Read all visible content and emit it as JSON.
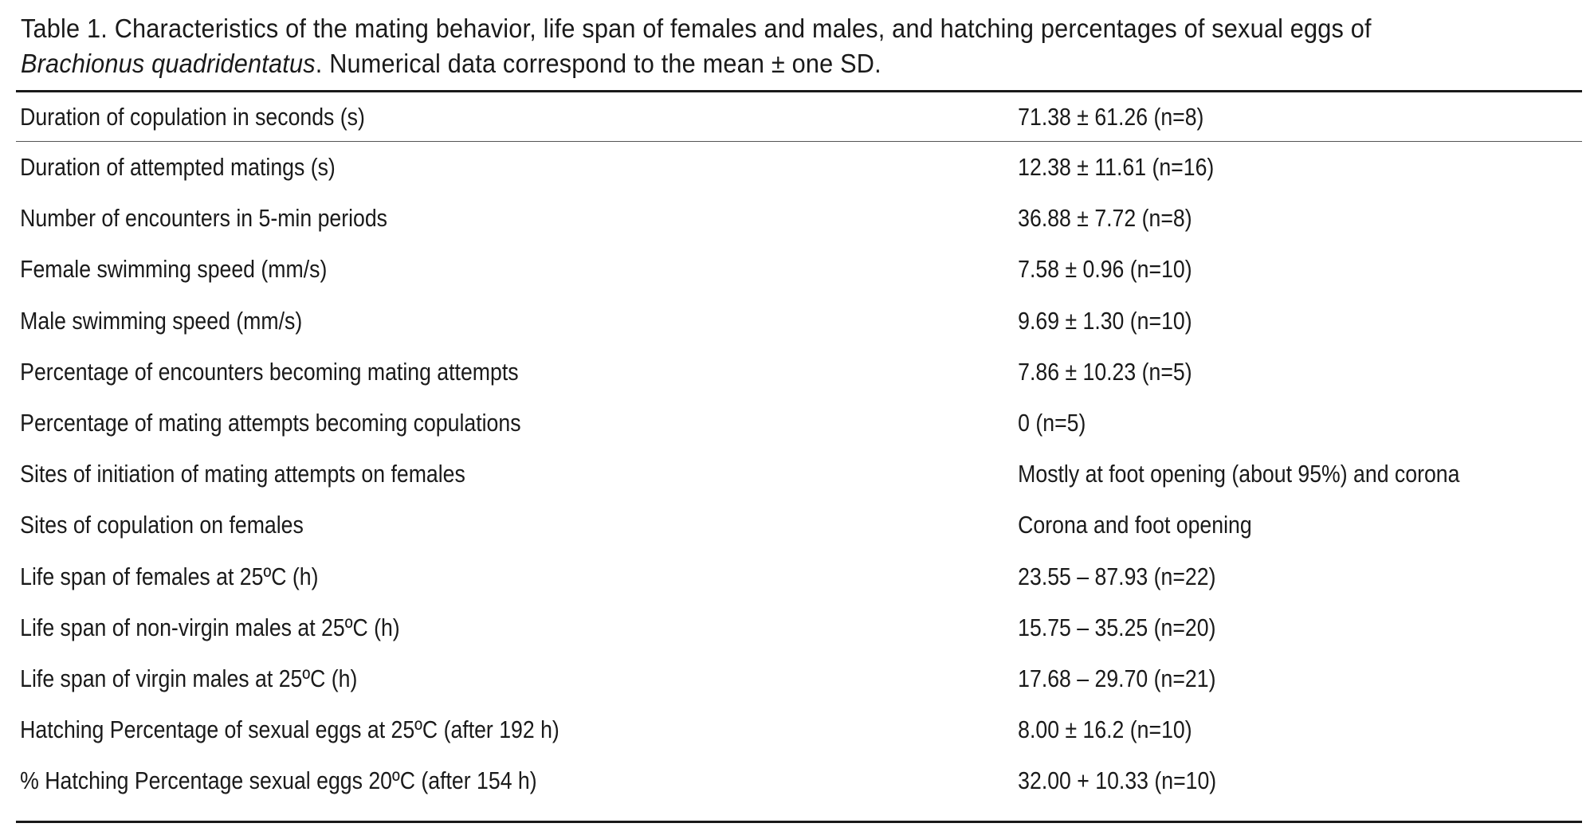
{
  "caption": {
    "prefix": "Table 1. Characteristics of the mating behavior, life span of females and males, and hatching percentages of sexual eggs of ",
    "species": "Brachionus quadridentatus",
    "suffix": ". Numerical data correspond to the mean ± one SD."
  },
  "rows": [
    {
      "label": "Duration of copulation in seconds (s)",
      "value": "71.38 ± 61.26 (n=8)"
    },
    {
      "label": "Duration of attempted matings (s)",
      "value": "12.38 ± 11.61 (n=16)"
    },
    {
      "label": "Number of encounters in 5-min periods",
      "value": "36.88 ± 7.72 (n=8)"
    },
    {
      "label": "Female swimming speed (mm/s)",
      "value": "7.58 ± 0.96 (n=10)"
    },
    {
      "label": "Male swimming speed (mm/s)",
      "value": "9.69 ± 1.30 (n=10)"
    },
    {
      "label": "Percentage of encounters becoming mating attempts",
      "value": "7.86 ± 10.23 (n=5)"
    },
    {
      "label": "Percentage of mating attempts becoming copulations",
      "value": "0 (n=5)"
    },
    {
      "label": "Sites of initiation of mating attempts on females",
      "value": "Mostly at foot opening (about 95%) and corona"
    },
    {
      "label": "Sites of copulation on females",
      "value": "Corona and foot opening"
    },
    {
      "label": "Life span of females at 25ºC (h)",
      "value": "23.55 – 87.93 (n=22)"
    },
    {
      "label": "Life span of non-virgin males at 25ºC (h)",
      "value": "15.75 – 35.25 (n=20)"
    },
    {
      "label": "Life span of virgin males at 25ºC (h)",
      "value": "17.68 – 29.70 (n=21)"
    },
    {
      "label": "Hatching Percentage of sexual eggs at 25ºC (after 192 h)",
      "value": "8.00 ± 16.2 (n=10)"
    },
    {
      "label": "% Hatching Percentage sexual eggs 20ºC (after 154 h)",
      "value": "32.00 + 10.33 (n=10)"
    }
  ]
}
